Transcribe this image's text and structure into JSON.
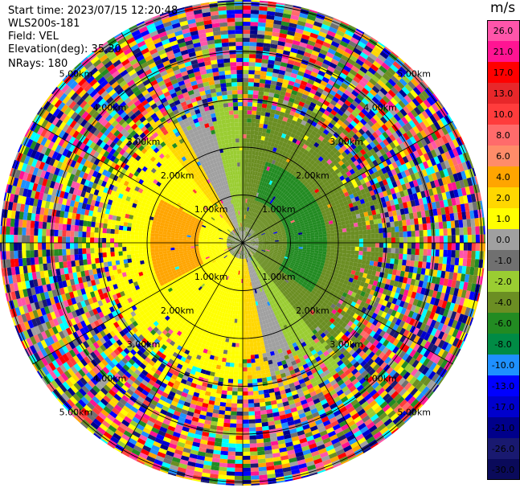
{
  "header": {
    "start_time": "Start time: 2023/07/15 12:20:48",
    "instrument": "WLS200s-181",
    "field": "Field: VEL",
    "elevation": "Elevation(deg): 35.30",
    "nrays": "NRays: 180"
  },
  "chart_data": {
    "type": "heatmap",
    "subtype": "ppi-polar",
    "field": "VEL",
    "instrument": "WLS200s-181",
    "start_time": "2023/07/15 12:20:48",
    "elevation_deg": 35.3,
    "nrays": 180,
    "range_rings_km": [
      1.0,
      2.0,
      3.0,
      4.0,
      5.0
    ],
    "ring_labels": [
      "1.00km",
      "2.00km",
      "3.00km",
      "4.00km",
      "5.00km"
    ],
    "max_range_km": 5.0,
    "spokes_deg": [
      0,
      30,
      60,
      90,
      120,
      150,
      180,
      210,
      240,
      270,
      300,
      330
    ],
    "colorbar": {
      "unit": "m/s",
      "tick_labels": [
        "26.0",
        "21.0",
        "17.0",
        "13.0",
        "10.0",
        "8.0",
        "6.0",
        "4.0",
        "2.0",
        "1.0",
        "0.0",
        "-1.0",
        "-2.0",
        "-4.0",
        "-6.0",
        "-8.0",
        "-10.0",
        "-13.0",
        "-17.0",
        "-21.0",
        "-26.0",
        "-30.0"
      ],
      "colors": [
        "#ff55aa",
        "#ff1493",
        "#ff0000",
        "#e8272a",
        "#ff3c3c",
        "#ff6b6b",
        "#ff8c69",
        "#ffa500",
        "#ffd700",
        "#ffff00",
        "#a0a0a0",
        "#707070",
        "#9acd32",
        "#6b8e23",
        "#228b22",
        "#008b45",
        "#1e90ff",
        "#0000ff",
        "#0000cd",
        "#00008b",
        "#191970",
        "#0a0a5a"
      ]
    },
    "regions": [
      {
        "description": "receding (positive) velocity, yellow/orange sector",
        "value_ms": 2.0,
        "core_value_ms": 5.0,
        "azimuth_center_deg": 270
      },
      {
        "description": "approaching (negative) velocity, green sector",
        "value_ms": -3.0,
        "core_value_ms": -6.0,
        "azimuth_center_deg": 90
      },
      {
        "description": "zero-velocity band, grey",
        "value_ms": 0.0
      }
    ]
  }
}
